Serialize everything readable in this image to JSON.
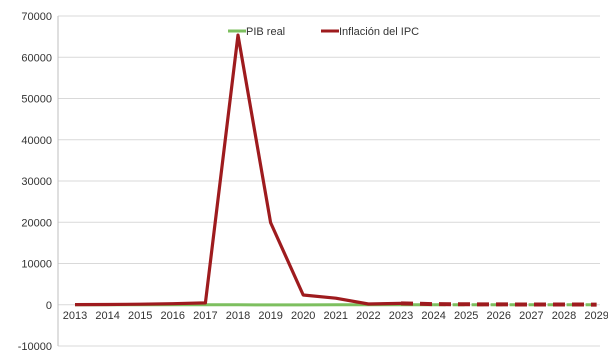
{
  "chart_data": {
    "type": "line",
    "title": "",
    "xlabel": "",
    "ylabel": "",
    "x": [
      "2013",
      "2014",
      "2015",
      "2016",
      "2017",
      "2018",
      "2019",
      "2020",
      "2021",
      "2022",
      "2023",
      "2024",
      "2025",
      "2026",
      "2027",
      "2028",
      "2029"
    ],
    "ylim": [
      -10000,
      70000
    ],
    "y_ticks": [
      "70000",
      "60000",
      "50000",
      "40000",
      "30000",
      "20000",
      "10000",
      "0",
      "-10000"
    ],
    "grid": "horizontal",
    "legend_position": "top",
    "series": [
      {
        "name": "PIB real",
        "color": "#7dbf5f",
        "values": [
          1,
          -4,
          -6,
          -17,
          -16,
          -20,
          -35,
          -30,
          -2,
          8,
          4,
          0,
          0,
          0,
          0,
          0,
          0
        ],
        "projected_from_index": 11
      },
      {
        "name": "Inflación del IPC",
        "color": "#9e1b1e",
        "values": [
          40,
          62,
          122,
          255,
          438,
          65374,
          19906,
          2355,
          1588,
          186,
          337,
          150,
          100,
          80,
          60,
          50,
          40
        ],
        "projected_from_index": 10
      }
    ]
  }
}
